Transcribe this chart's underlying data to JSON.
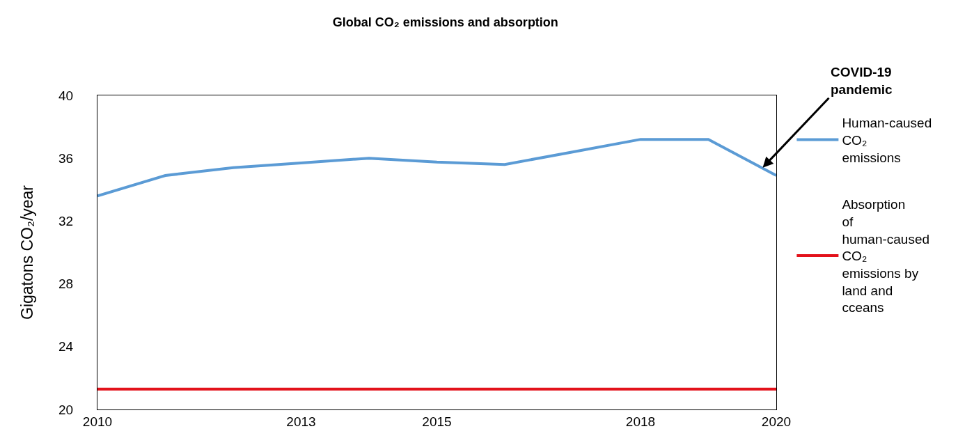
{
  "chart_data": {
    "type": "line",
    "title": "Global CO₂ emissions and absorption",
    "ylabel": "Gigatons CO₂/year",
    "x": [
      2010,
      2011,
      2012,
      2013,
      2014,
      2015,
      2016,
      2017,
      2018,
      2019,
      2020
    ],
    "series": [
      {
        "name": "Human-caused CO₂ emissions",
        "color": "#5b9bd5",
        "values": [
          33.6,
          34.9,
          35.4,
          35.7,
          36.0,
          35.75,
          35.6,
          36.4,
          37.2,
          37.2,
          34.9
        ]
      },
      {
        "name": "Absorption of human-caused CO₂ emissions by land and cceans",
        "color": "#e3121b",
        "x": [
          2010,
          2020
        ],
        "values": [
          21.3,
          21.3
        ]
      }
    ],
    "xlim": [
      2010,
      2020
    ],
    "xticks": [
      2010,
      2013,
      2015,
      2018,
      2020
    ],
    "ylim": [
      20,
      40
    ],
    "yticks": [
      20,
      24,
      28,
      32,
      36,
      40
    ],
    "grid": false,
    "legend": "right",
    "marker": "none",
    "line_style": "solid",
    "annotations": [
      {
        "text": "COVID-19 pandemic",
        "x": 2019.8,
        "y": 35.4
      }
    ]
  }
}
